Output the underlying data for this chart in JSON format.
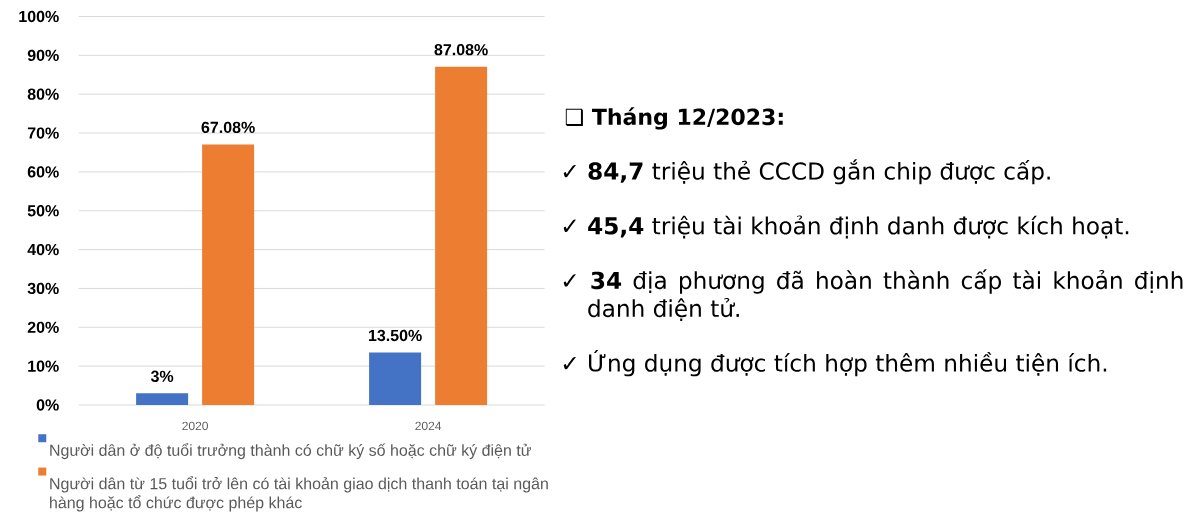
{
  "chart_data": [
    {
      "type": "bar",
      "categories": [
        "2020",
        "2024"
      ],
      "series": [
        {
          "name": "Người dân ở độ tuổi trưởng thành có chữ ký số hoặc chữ ký điện tử",
          "color": "#4472c4",
          "values": [
            3,
            13.5
          ],
          "value_labels": [
            "3%",
            "13.50%"
          ]
        },
        {
          "name": "Người dân từ 15 tuổi trở lên có tài khoản giao dịch thanh toán tại ngân hàng hoặc tổ chức được phép khác",
          "color": "#ed7d31",
          "values": [
            67.08,
            87.08
          ],
          "value_labels": [
            "67.08%",
            "87.08%"
          ]
        }
      ],
      "ylim": [
        0,
        100
      ],
      "yticks": [
        {
          "value": 0,
          "label": "0%"
        },
        {
          "value": 10,
          "label": "10%"
        },
        {
          "value": 20,
          "label": "20%"
        },
        {
          "value": 30,
          "label": "30%"
        },
        {
          "value": 40,
          "label": "40%"
        },
        {
          "value": 50,
          "label": "50%"
        },
        {
          "value": 60,
          "label": "60%"
        },
        {
          "value": 70,
          "label": "70%"
        },
        {
          "value": 80,
          "label": "80%"
        },
        {
          "value": 90,
          "label": "90%"
        },
        {
          "value": 100,
          "label": "100%"
        }
      ],
      "grid": "y",
      "legend": "bottom"
    },
    {
      "type": "other",
      "title": "❑ Tháng 12/2023:",
      "annotations": [
        "✓ **84,7** triệu thẻ CCCD gắn chip được cấp.",
        "✓ **45,4** triệu tài khoản định danh được kích hoạt.",
        "✓ **34** địa phương đã hoàn thành cấp tài khoản định danh điện tử.",
        "✓ Ứng dụng được tích hợp thêm nhiều tiện ích."
      ]
    }
  ]
}
